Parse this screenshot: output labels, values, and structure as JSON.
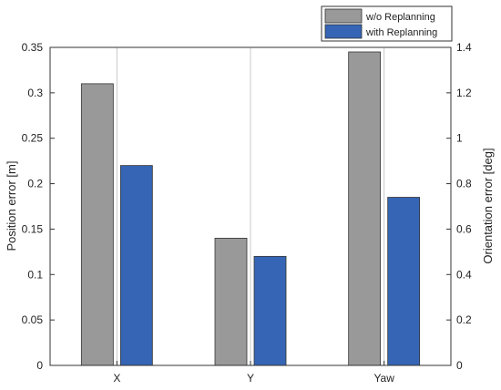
{
  "chart_data": {
    "type": "bar",
    "categories": [
      "X",
      "Y",
      "Yaw"
    ],
    "series": [
      {
        "name": "w/o Replanning",
        "values": [
          0.31,
          0.14,
          0.345
        ],
        "color": "#999999"
      },
      {
        "name": "with Replanning",
        "values": [
          0.22,
          0.12,
          0.185
        ],
        "color": "#3565b4"
      }
    ],
    "ylabel_left": "Position error [m]",
    "ylabel_right": "Orientation error [deg]",
    "ylim_left": [
      0,
      0.35
    ],
    "ylim_right": [
      0,
      1.4
    ],
    "yticks_left": [
      "0",
      "0.05",
      "0.1",
      "0.15",
      "0.2",
      "0.25",
      "0.3",
      "0.35"
    ],
    "yticks_right": [
      "0",
      "0.2",
      "0.4",
      "0.6",
      "0.8",
      "1",
      "1.2",
      "1.4"
    ],
    "grid": "vertical",
    "legend_position": "top-right"
  }
}
